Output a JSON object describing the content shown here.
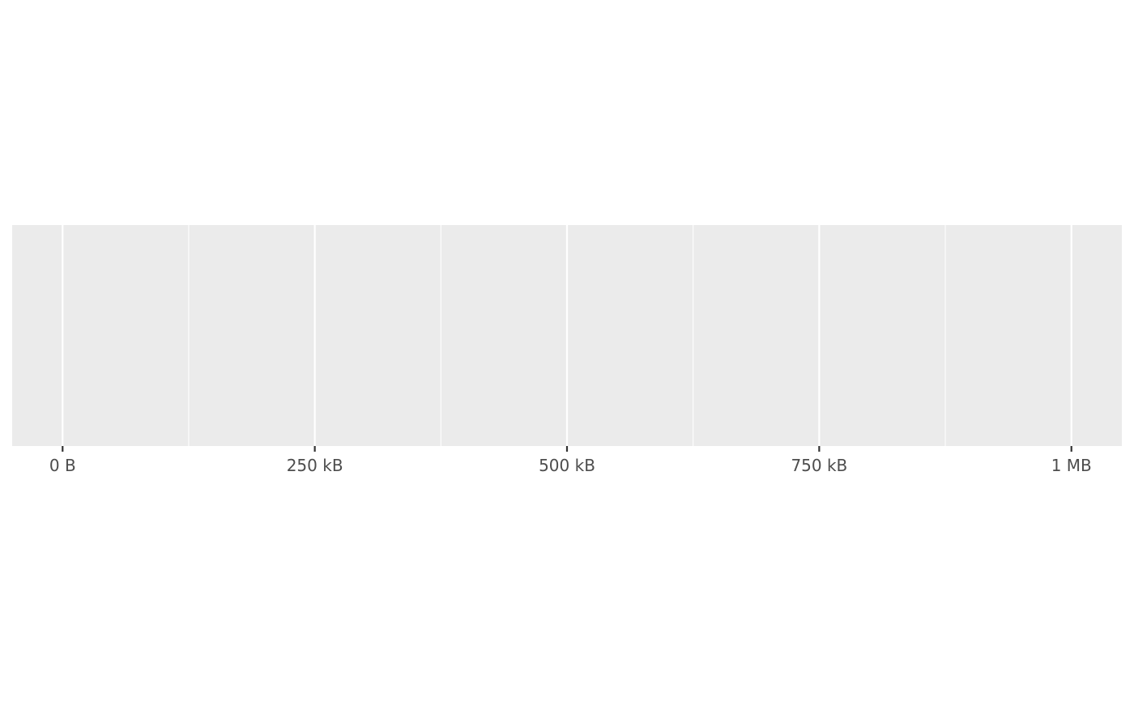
{
  "chart_data": {
    "type": "scatter",
    "title": "",
    "xlabel": "",
    "ylabel": "",
    "x_unit": "bytes",
    "xlim": [
      -50000,
      1050000
    ],
    "x_ticks": [
      {
        "value": 0,
        "label": "0 B"
      },
      {
        "value": 250000,
        "label": "250 kB"
      },
      {
        "value": 500000,
        "label": "500 kB"
      },
      {
        "value": 750000,
        "label": "750 kB"
      },
      {
        "value": 1000000,
        "label": "1 MB"
      }
    ],
    "x_minor_ticks": [
      125000,
      375000,
      625000,
      875000
    ],
    "y_ticks": [],
    "series": [],
    "grid": true,
    "legend": "none",
    "colors": {
      "panel_background": "#ebebeb",
      "grid_major": "#ffffff",
      "grid_minor": "#ffffff",
      "tick_mark": "#333333",
      "tick_label": "#4d4d4d"
    }
  }
}
